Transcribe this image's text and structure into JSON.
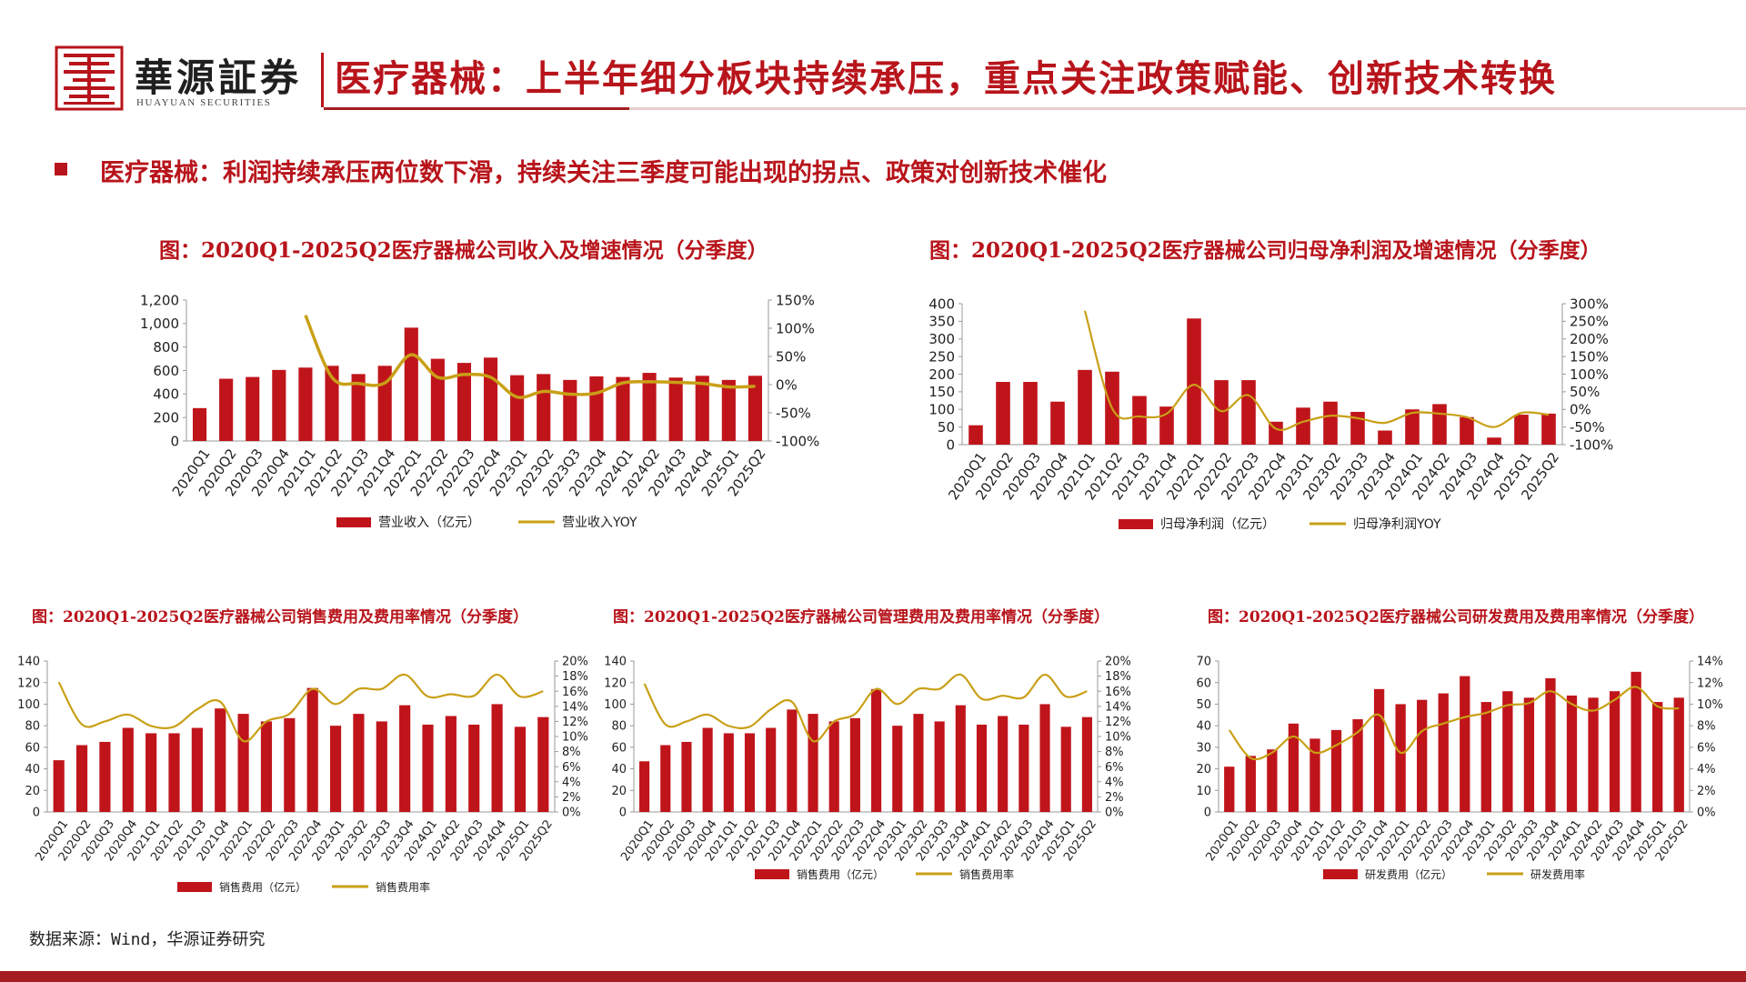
{
  "brand": {
    "name_cn": "華源証券",
    "name_en": "HUAYUAN SECURITIES"
  },
  "page_title": "医疗器械：上半年细分板块持续承压，重点关注政策赋能、创新技术转换",
  "section_heading": "医疗器械：利润持续承压两位数下滑，持续关注三季度可能出现的拐点、政策对创新技术催化",
  "source": "数据来源：Wind，华源证券研究",
  "colors": {
    "bar": "#c0141b",
    "line": "#c9a017",
    "accent": "#b8141b"
  },
  "chart_data": [
    {
      "type": "bar",
      "title": "图：2020Q1-2025Q2医疗器械公司收入及增速情况（分季度）",
      "categories": [
        "2020Q1",
        "2020Q2",
        "2020Q3",
        "2020Q4",
        "2021Q1",
        "2021Q2",
        "2021Q3",
        "2021Q4",
        "2022Q1",
        "2022Q2",
        "2022Q3",
        "2022Q4",
        "2023Q1",
        "2023Q2",
        "2023Q3",
        "2023Q4",
        "2024Q1",
        "2024Q2",
        "2024Q3",
        "2024Q4",
        "2025Q1",
        "2025Q2"
      ],
      "series": [
        {
          "name": "营业收入（亿元）",
          "type": "bar",
          "axis": "left",
          "values": [
            280,
            530,
            545,
            605,
            625,
            640,
            570,
            640,
            965,
            700,
            665,
            710,
            560,
            570,
            520,
            550,
            545,
            580,
            540,
            555,
            520,
            555
          ]
        },
        {
          "name": "营业收入YOY",
          "type": "line",
          "axis": "right",
          "values": [
            null,
            null,
            null,
            null,
            123,
            13,
            2,
            3,
            53,
            13,
            18,
            13,
            -22,
            -12,
            -17,
            -15,
            3,
            5,
            4,
            2,
            -4,
            -3
          ]
        }
      ],
      "yticks_left": [
        "0",
        "200",
        "400",
        "600",
        "800",
        "1,000",
        "1,200"
      ],
      "yticks_right": [
        "-100%",
        "-50%",
        "0%",
        "50%",
        "100%",
        "150%"
      ],
      "ylim_left": [
        0,
        1200
      ],
      "ylim_right": [
        -100,
        150
      ],
      "legend": [
        "营业收入（亿元）",
        "营业收入YOY"
      ],
      "legend_position": "bottom"
    },
    {
      "type": "bar",
      "title": "图：2020Q1-2025Q2医疗器械公司归母净利润及增速情况（分季度）",
      "categories": [
        "2020Q1",
        "2020Q2",
        "2020Q3",
        "2020Q4",
        "2021Q1",
        "2021Q2",
        "2021Q3",
        "2021Q4",
        "2022Q1",
        "2022Q2",
        "2022Q3",
        "2022Q4",
        "2023Q1",
        "2023Q2",
        "2023Q3",
        "2023Q4",
        "2024Q1",
        "2024Q2",
        "2024Q3",
        "2024Q4",
        "2025Q1",
        "2025Q2"
      ],
      "series": [
        {
          "name": "归母净利润（亿元）",
          "type": "bar",
          "axis": "left",
          "values": [
            55,
            178,
            178,
            122,
            212,
            207,
            138,
            108,
            358,
            183,
            183,
            65,
            105,
            122,
            93,
            40,
            100,
            115,
            78,
            20,
            85,
            88
          ]
        },
        {
          "name": "归母净利润YOY",
          "type": "line",
          "axis": "right",
          "values": [
            null,
            null,
            null,
            null,
            280,
            3,
            -20,
            -12,
            70,
            -5,
            40,
            -55,
            -35,
            -18,
            -25,
            -38,
            -10,
            -12,
            -22,
            -50,
            -10,
            -15
          ]
        }
      ],
      "yticks_left": [
        "0",
        "50",
        "100",
        "150",
        "200",
        "250",
        "300",
        "350",
        "400"
      ],
      "yticks_right": [
        "-100%",
        "-50%",
        "0%",
        "50%",
        "100%",
        "150%",
        "200%",
        "250%",
        "300%"
      ],
      "ylim_left": [
        0,
        400
      ],
      "ylim_right": [
        -100,
        300
      ],
      "legend": [
        "归母净利润（亿元）",
        "归母净利润YOY"
      ],
      "legend_position": "bottom"
    },
    {
      "type": "bar",
      "title": "图：2020Q1-2025Q2医疗器械公司销售费用及费用率情况（分季度）",
      "categories": [
        "2020Q1",
        "2020Q2",
        "2020Q3",
        "2020Q4",
        "2021Q1",
        "2021Q2",
        "2021Q3",
        "2021Q4",
        "2022Q1",
        "2022Q2",
        "2022Q3",
        "2022Q4",
        "2023Q1",
        "2023Q2",
        "2023Q3",
        "2023Q4",
        "2024Q1",
        "2024Q2",
        "2024Q3",
        "2024Q4",
        "2025Q1",
        "2025Q2"
      ],
      "series": [
        {
          "name": "销售费用（亿元）",
          "type": "bar",
          "axis": "left",
          "values": [
            48,
            62,
            65,
            78,
            73,
            73,
            78,
            96,
            91,
            84,
            87,
            115,
            80,
            91,
            84,
            99,
            81,
            89,
            81,
            100,
            79,
            88
          ]
        },
        {
          "name": "销售费用率",
          "type": "line",
          "axis": "right",
          "values": [
            17.2,
            11.6,
            12.0,
            12.9,
            11.4,
            11.3,
            13.6,
            14.6,
            9.4,
            12.0,
            13.0,
            16.3,
            14.3,
            16.3,
            16.3,
            18.2,
            15.3,
            15.6,
            15.4,
            18.2,
            15.3,
            16.0
          ]
        }
      ],
      "yticks_left": [
        "0",
        "20",
        "40",
        "60",
        "80",
        "100",
        "120",
        "140"
      ],
      "yticks_right": [
        "0%",
        "2%",
        "4%",
        "6%",
        "8%",
        "10%",
        "12%",
        "14%",
        "16%",
        "18%",
        "20%"
      ],
      "ylim_left": [
        0,
        140
      ],
      "ylim_right": [
        0,
        20
      ],
      "legend": [
        "销售费用（亿元）",
        "销售费用率"
      ],
      "legend_position": "bottom"
    },
    {
      "type": "bar",
      "title": "图：2020Q1-2025Q2医疗器械公司管理费用及费用率情况（分季度）",
      "categories": [
        "2020Q1",
        "2020Q2",
        "2020Q3",
        "2020Q4",
        "2021Q1",
        "2021Q2",
        "2021Q3",
        "2021Q4",
        "2022Q1",
        "2022Q2",
        "2022Q3",
        "2022Q4",
        "2023Q1",
        "2023Q2",
        "2023Q3",
        "2023Q4",
        "2024Q1",
        "2024Q2",
        "2024Q3",
        "2024Q4",
        "2025Q1",
        "2025Q2"
      ],
      "series": [
        {
          "name": "销售费用（亿元）",
          "type": "bar",
          "axis": "left",
          "values": [
            47,
            62,
            65,
            78,
            73,
            73,
            78,
            95,
            91,
            84,
            87,
            114,
            80,
            91,
            84,
            99,
            81,
            89,
            81,
            100,
            79,
            88
          ]
        },
        {
          "name": "销售费用率",
          "type": "line",
          "axis": "right",
          "values": [
            17.0,
            11.6,
            12.0,
            12.9,
            11.4,
            11.3,
            13.6,
            14.6,
            9.4,
            12.0,
            13.0,
            16.3,
            14.3,
            16.3,
            16.3,
            18.2,
            15.0,
            15.4,
            15.2,
            18.2,
            15.3,
            16.0
          ]
        }
      ],
      "yticks_left": [
        "0",
        "20",
        "40",
        "60",
        "80",
        "100",
        "120",
        "140"
      ],
      "yticks_right": [
        "0%",
        "2%",
        "4%",
        "6%",
        "8%",
        "10%",
        "12%",
        "14%",
        "16%",
        "18%",
        "20%"
      ],
      "ylim_left": [
        0,
        140
      ],
      "ylim_right": [
        0,
        20
      ],
      "legend": [
        "销售费用（亿元）",
        "销售费用率"
      ],
      "legend_position": "bottom"
    },
    {
      "type": "bar",
      "title": "图：2020Q1-2025Q2医疗器械公司研发费用及费用率情况（分季度）",
      "categories": [
        "2020Q1",
        "2020Q2",
        "2020Q3",
        "2020Q4",
        "2021Q1",
        "2021Q2",
        "2021Q3",
        "2021Q4",
        "2022Q1",
        "2022Q2",
        "2022Q3",
        "2022Q4",
        "2023Q1",
        "2023Q2",
        "2023Q3",
        "2023Q4",
        "2024Q1",
        "2024Q2",
        "2024Q3",
        "2024Q4",
        "2025Q1",
        "2025Q2"
      ],
      "series": [
        {
          "name": "研发费用（亿元）",
          "type": "bar",
          "axis": "left",
          "values": [
            21,
            26,
            29,
            41,
            34,
            38,
            43,
            57,
            50,
            52,
            55,
            63,
            51,
            56,
            53,
            62,
            54,
            53,
            56,
            65,
            51,
            53
          ]
        },
        {
          "name": "研发费用率",
          "type": "line",
          "axis": "right",
          "values": [
            7.6,
            5.0,
            5.5,
            7.0,
            5.5,
            6.2,
            7.4,
            9.0,
            5.5,
            7.5,
            8.2,
            8.8,
            9.2,
            9.9,
            10.1,
            11.2,
            10.0,
            9.4,
            10.4,
            11.6,
            9.8,
            9.6
          ]
        }
      ],
      "yticks_left": [
        "0",
        "10",
        "20",
        "30",
        "40",
        "50",
        "60",
        "70"
      ],
      "yticks_right": [
        "0%",
        "2%",
        "4%",
        "6%",
        "8%",
        "10%",
        "12%",
        "14%"
      ],
      "ylim_left": [
        0,
        70
      ],
      "ylim_right": [
        0,
        14
      ],
      "legend": [
        "研发费用（亿元）",
        "研发费用率"
      ],
      "legend_position": "bottom"
    }
  ]
}
